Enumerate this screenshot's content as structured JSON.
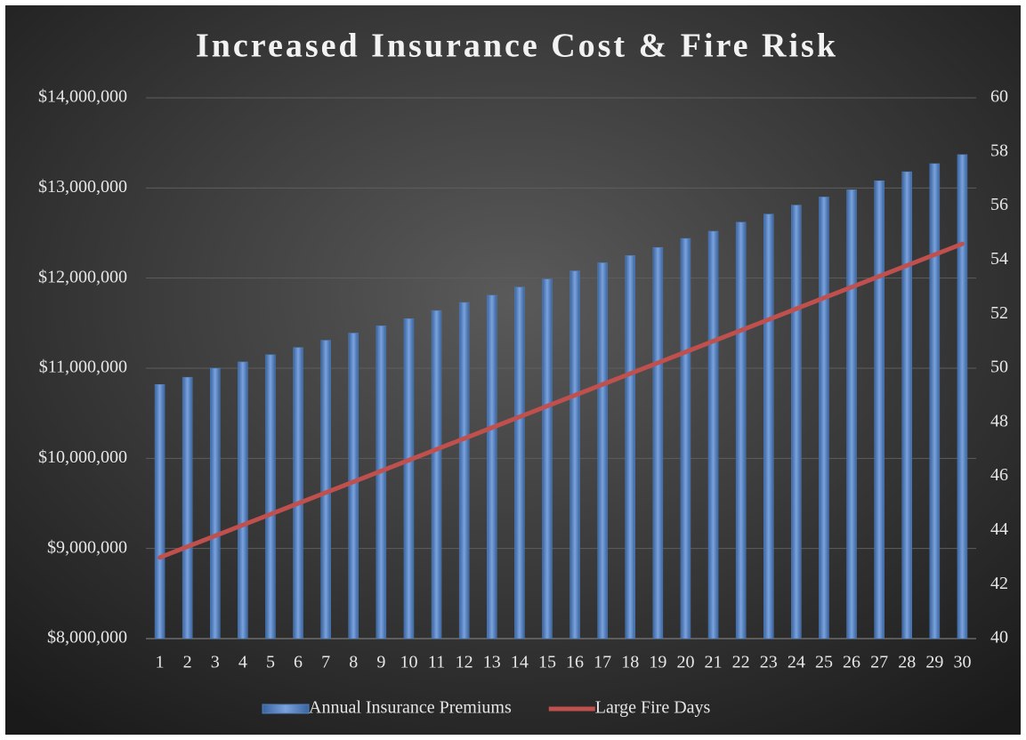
{
  "chart_data": {
    "type": "bar_line",
    "title": "Increased Insurance Cost & Fire Risk",
    "categories": [
      "1",
      "2",
      "3",
      "4",
      "5",
      "6",
      "7",
      "8",
      "9",
      "10",
      "11",
      "12",
      "13",
      "14",
      "15",
      "16",
      "17",
      "18",
      "19",
      "20",
      "21",
      "22",
      "23",
      "24",
      "25",
      "26",
      "27",
      "28",
      "29",
      "30"
    ],
    "series": [
      {
        "name": "Annual Insurance Premiums",
        "color": "#4f81bd",
        "type": "bar",
        "values": [
          10820000,
          10900000,
          11000000,
          11070000,
          11150000,
          11230000,
          11310000,
          11390000,
          11470000,
          11550000,
          11640000,
          11730000,
          11810000,
          11900000,
          11990000,
          12080000,
          12170000,
          12250000,
          12340000,
          12440000,
          12520000,
          12620000,
          12710000,
          12810000,
          12900000,
          12980000,
          13080000,
          13180000,
          13270000,
          13370000
        ]
      },
      {
        "name": "Large Fire Days",
        "color": "#c0504d",
        "type": "line",
        "axis": "y2",
        "values": [
          43,
          43.4,
          43.8,
          44.2,
          44.6,
          45,
          45.4,
          45.8,
          46.2,
          46.6,
          47,
          47.4,
          47.8,
          48.2,
          48.6,
          49,
          49.4,
          49.8,
          50.2,
          50.6,
          51,
          51.4,
          51.8,
          52.2,
          52.6,
          53,
          53.4,
          53.8,
          54.2,
          54.6
        ]
      }
    ],
    "ylim": [
      8000000,
      14000000
    ],
    "yticks": [
      {
        "value": 8000000,
        "label": "$8,000,000"
      },
      {
        "value": 9000000,
        "label": "$9,000,000"
      },
      {
        "value": 10000000,
        "label": "$10,000,000"
      },
      {
        "value": 11000000,
        "label": "$11,000,000"
      },
      {
        "value": 12000000,
        "label": "$12,000,000"
      },
      {
        "value": 13000000,
        "label": "$13,000,000"
      },
      {
        "value": 14000000,
        "label": "$14,000,000"
      }
    ],
    "y2lim": [
      40,
      60
    ],
    "y2ticks": [
      40,
      42,
      44,
      46,
      48,
      50,
      52,
      54,
      56,
      58,
      60
    ],
    "grid": true,
    "legend": "bottom"
  }
}
